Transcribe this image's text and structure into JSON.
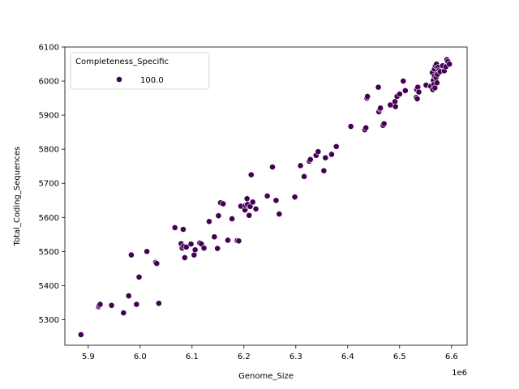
{
  "chart_data": {
    "type": "scatter",
    "title": "",
    "xlabel": "Genome_Size",
    "ylabel": "Total_Coding_Sequences",
    "x_offset_label": "1e6",
    "xlim": [
      5.855,
      6.63
    ],
    "ylim": [
      5225,
      6100
    ],
    "x_ticks": [
      5.9,
      6.0,
      6.1,
      6.2,
      6.3,
      6.4,
      6.5,
      6.6
    ],
    "x_tick_labels": [
      "5.9",
      "6.0",
      "6.1",
      "6.2",
      "6.3",
      "6.4",
      "6.5",
      "6.6"
    ],
    "y_ticks": [
      5300,
      5400,
      5500,
      5600,
      5700,
      5800,
      5900,
      6000,
      6100
    ],
    "y_tick_labels": [
      "5300",
      "5400",
      "5500",
      "5600",
      "5700",
      "5800",
      "5900",
      "6000",
      "6100"
    ],
    "grid": false,
    "legend": {
      "title": "Completeness_Specific",
      "placement": "top-left",
      "entries": [
        {
          "label": "100.0",
          "color": "#440154"
        }
      ]
    },
    "marker_color": "#440154",
    "marker_edge": "#ffffff",
    "series": [
      {
        "name": "100.0",
        "points": [
          [
            5.886,
            5256
          ],
          [
            5.92,
            5338
          ],
          [
            5.921,
            5342
          ],
          [
            5.923,
            5345
          ],
          [
            5.945,
            5342
          ],
          [
            5.968,
            5320
          ],
          [
            5.978,
            5370
          ],
          [
            5.983,
            5490
          ],
          [
            5.993,
            5345
          ],
          [
            5.998,
            5425
          ],
          [
            6.013,
            5500
          ],
          [
            6.03,
            5468
          ],
          [
            6.032,
            5465
          ],
          [
            6.036,
            5348
          ],
          [
            6.067,
            5570
          ],
          [
            6.079,
            5523
          ],
          [
            6.081,
            5510
          ],
          [
            6.083,
            5565
          ],
          [
            6.084,
            5515
          ],
          [
            6.086,
            5482
          ],
          [
            6.089,
            5513
          ],
          [
            6.098,
            5522
          ],
          [
            6.104,
            5490
          ],
          [
            6.106,
            5505
          ],
          [
            6.115,
            5525
          ],
          [
            6.118,
            5522
          ],
          [
            6.123,
            5510
          ],
          [
            6.133,
            5588
          ],
          [
            6.143,
            5543
          ],
          [
            6.149,
            5509
          ],
          [
            6.151,
            5605
          ],
          [
            6.155,
            5643
          ],
          [
            6.16,
            5640
          ],
          [
            6.169,
            5533
          ],
          [
            6.177,
            5596
          ],
          [
            6.187,
            5532
          ],
          [
            6.19,
            5531
          ],
          [
            6.194,
            5633
          ],
          [
            6.202,
            5622
          ],
          [
            6.203,
            5635
          ],
          [
            6.206,
            5655
          ],
          [
            6.207,
            5638
          ],
          [
            6.21,
            5606
          ],
          [
            6.212,
            5632
          ],
          [
            6.214,
            5725
          ],
          [
            6.217,
            5645
          ],
          [
            6.223,
            5625
          ],
          [
            6.245,
            5663
          ],
          [
            6.255,
            5748
          ],
          [
            6.262,
            5650
          ],
          [
            6.268,
            5610
          ],
          [
            6.298,
            5660
          ],
          [
            6.309,
            5752
          ],
          [
            6.316,
            5720
          ],
          [
            6.326,
            5765
          ],
          [
            6.328,
            5770
          ],
          [
            6.339,
            5782
          ],
          [
            6.343,
            5793
          ],
          [
            6.354,
            5737
          ],
          [
            6.357,
            5775
          ],
          [
            6.369,
            5785
          ],
          [
            6.378,
            5808
          ],
          [
            6.406,
            5867
          ],
          [
            6.433,
            5857
          ],
          [
            6.435,
            5863
          ],
          [
            6.437,
            5950
          ],
          [
            6.438,
            5955
          ],
          [
            6.459,
            5982
          ],
          [
            6.46,
            5910
          ],
          [
            6.462,
            5918
          ],
          [
            6.463,
            5921
          ],
          [
            6.468,
            5870
          ],
          [
            6.47,
            5875
          ],
          [
            6.482,
            5930
          ],
          [
            6.491,
            5940
          ],
          [
            6.492,
            5925
          ],
          [
            6.495,
            5955
          ],
          [
            6.5,
            5962
          ],
          [
            6.507,
            6000
          ],
          [
            6.511,
            5972
          ],
          [
            6.532,
            5952
          ],
          [
            6.533,
            5975
          ],
          [
            6.534,
            5948
          ],
          [
            6.535,
            5982
          ],
          [
            6.537,
            5968
          ],
          [
            6.551,
            5988
          ],
          [
            6.56,
            5985
          ],
          [
            6.563,
            6025
          ],
          [
            6.564,
            5975
          ],
          [
            6.565,
            6002
          ],
          [
            6.566,
            5990
          ],
          [
            6.567,
            6015
          ],
          [
            6.567,
            6035
          ],
          [
            6.568,
            5980
          ],
          [
            6.569,
            6045
          ],
          [
            6.57,
            6010
          ],
          [
            6.571,
            6050
          ],
          [
            6.572,
            5995
          ],
          [
            6.573,
            6020
          ],
          [
            6.574,
            6040
          ],
          [
            6.576,
            6032
          ],
          [
            6.578,
            6028
          ],
          [
            6.583,
            6045
          ],
          [
            6.586,
            6030
          ],
          [
            6.589,
            6042
          ],
          [
            6.591,
            6063
          ],
          [
            6.593,
            6057
          ],
          [
            6.596,
            6050
          ]
        ]
      }
    ]
  }
}
